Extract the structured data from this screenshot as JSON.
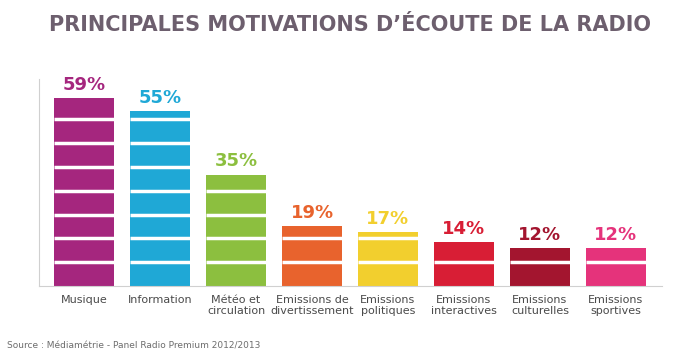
{
  "chart_data": {
    "type": "bar",
    "title": "PRINCIPALES MOTIVATIONS D’ÉCOUTE DE LA RADIO",
    "categories": [
      "Musique",
      "Information",
      "Météo et\ncirculation",
      "Emissions de\ndivertissement",
      "Emissions\npolitiques",
      "Emissions\ninteractives",
      "Emissions\nculturelles",
      "Emissions\nsportives"
    ],
    "values": [
      59,
      55,
      35,
      19,
      17,
      14,
      12,
      12
    ],
    "value_labels": [
      "59%",
      "55%",
      "35%",
      "19%",
      "17%",
      "14%",
      "12%",
      "12%"
    ],
    "colors": [
      "#a5267e",
      "#1fa8d6",
      "#8cbf3f",
      "#e8632d",
      "#f2cf2e",
      "#d81e35",
      "#a3152f",
      "#e5337b"
    ],
    "ylim": [
      0,
      65
    ],
    "yticks": [],
    "grid": false,
    "data_labels": true,
    "tick_labels": "x",
    "source": "Source : Médiamétrie - Panel Radio Premium 2012/2013"
  }
}
